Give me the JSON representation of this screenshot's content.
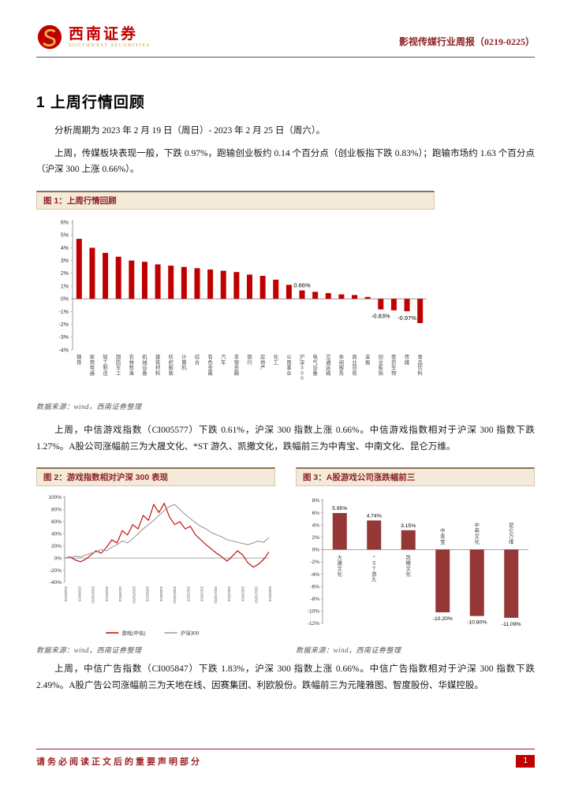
{
  "header": {
    "brand": "西南证券",
    "brand_sub": "SOUTHWEST SECURITIES",
    "report_title": "影视传媒行业周报（0219-0225）"
  },
  "section": {
    "title": "1 上周行情回顾"
  },
  "paragraphs": {
    "p1": "分析周期为 2023 年 2 月 19 日（周日）- 2023 年 2 月 25 日（周六）。",
    "p2": "上周，传媒板块表现一般，下跌 0.97%，跑输创业板约 0.14 个百分点（创业板指下跌 0.83%）；跑输市场约 1.63 个百分点（沪深 300 上涨 0.66%）。",
    "p3": "上周，中信游戏指数（CI005577）下跌 0.61%，沪深 300 指数上涨 0.66%。中信游戏指数相对于沪深 300 指数下跌 1.27%。A股公司涨幅前三为大晟文化、*ST 游久、凯撒文化，跌幅前三为中青宝、中南文化、昆仑万维。",
    "p4": "上周，中信广告指数（CI005847）下跌 1.83%，沪深 300 指数上涨 0.66%。中信广告指数相对于沪深 300 指数下跌 2.49%。A股广告公司涨幅前三为天地在线、因赛集团、利欧股份。跌幅前三为元隆雅图、智度股份、华媒控股。"
  },
  "figures": {
    "fig1_title": "图 1：上周行情回顾",
    "fig2_title": "图 2：游戏指数相对沪深 300 表现",
    "fig3_title": "图 3：A股游戏公司涨跌幅前三",
    "source": "数据来源：wind，西南证券整理"
  },
  "footer": {
    "disclaimer": "请务必阅读正文后的重要声明部分",
    "page": "1"
  },
  "colors": {
    "accent": "#8E1F1F",
    "bar_red": "#C00000",
    "bar_brick": "#953735",
    "line_gray": "#999999"
  },
  "chart_data": [
    {
      "type": "bar",
      "title": "上周行情回顾",
      "ylabel": "涨跌幅",
      "ylim": [
        -4,
        6
      ],
      "ytick_step": 1,
      "bar_color": "#C00000",
      "categories": [
        "钢铁",
        "家用电器",
        "轻工制造",
        "国防军工",
        "农林牧渔",
        "机械设备",
        "建筑材料",
        "纺织服装",
        "计算机",
        "综合",
        "有色金属",
        "汽车",
        "非银金融",
        "银行",
        "房地产",
        "化工",
        "公用事业",
        "沪深300",
        "电气设备",
        "交通运输",
        "休闲服务",
        "商业贸易",
        "采掘",
        "创业板指",
        "医药生物",
        "传媒",
        "食品饮料"
      ],
      "values": [
        4.7,
        4.0,
        3.6,
        3.3,
        3.0,
        2.9,
        2.7,
        2.6,
        2.5,
        2.4,
        2.3,
        2.2,
        2.1,
        1.9,
        1.8,
        1.5,
        1.1,
        0.66,
        0.55,
        0.45,
        0.35,
        0.3,
        0.15,
        -0.83,
        -0.9,
        -0.97,
        -1.9
      ],
      "annotations": [
        {
          "index": 17,
          "text": "0.66%"
        },
        {
          "index": 23,
          "text": "-0.83%"
        },
        {
          "index": 25,
          "text": "-0.97%"
        }
      ]
    },
    {
      "type": "line",
      "title": "游戏指数相对沪深 300 表现",
      "ylim": [
        -40,
        100
      ],
      "ytick_step": 20,
      "legend_position": "bottom",
      "x_labels": [
        "2018/2/23",
        "2018/6/23",
        "2018/10/23",
        "2019/2/23",
        "2019/6/23",
        "2019/10/23",
        "2020/2/23",
        "2020/6/23",
        "2020/10/23",
        "2021/2/23",
        "2021/6/23",
        "2021/10/23",
        "2022/2/23",
        "2022/6/23",
        "2022/10/23",
        "2023/2/23"
      ],
      "series": [
        {
          "name": "游戏(中信)",
          "color": "#C00000",
          "values": [
            0,
            2,
            -3,
            -6,
            -2,
            5,
            12,
            8,
            18,
            30,
            25,
            45,
            38,
            55,
            48,
            70,
            62,
            88,
            75,
            90,
            68,
            55,
            60,
            48,
            52,
            38,
            30,
            22,
            15,
            8,
            2,
            -5,
            3,
            12,
            5,
            -8,
            -15,
            -10,
            -2,
            10
          ]
        },
        {
          "name": "沪深300",
          "color": "#999999",
          "values": [
            0,
            1,
            3,
            2,
            5,
            8,
            10,
            14,
            12,
            18,
            22,
            28,
            25,
            32,
            40,
            48,
            55,
            62,
            70,
            78,
            85,
            88,
            80,
            72,
            65,
            58,
            52,
            48,
            42,
            38,
            35,
            30,
            28,
            26,
            24,
            22,
            25,
            28,
            26,
            34
          ]
        }
      ]
    },
    {
      "type": "bar",
      "title": "A股游戏公司涨跌幅前三",
      "ylim": [
        -12,
        8
      ],
      "ytick_step": 2,
      "bar_color": "#953735",
      "categories": [
        "大晟文化",
        "*ST游久",
        "凯撒文化",
        "中青宝",
        "中南文化",
        "昆仑万维"
      ],
      "values": [
        5.95,
        4.74,
        3.15,
        -10.2,
        -10.8,
        -11.09
      ],
      "labels": [
        "5.95%",
        "4.74%",
        "3.15%",
        "-10.20%",
        "-10.80%",
        "-11.09%"
      ]
    }
  ]
}
